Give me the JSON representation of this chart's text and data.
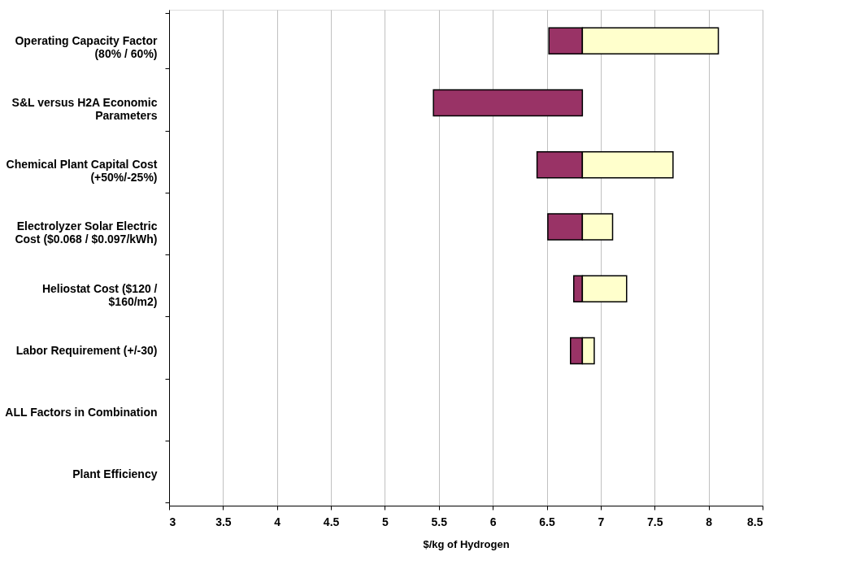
{
  "chart_data": {
    "type": "bar",
    "orientation": "horizontal",
    "xlabel": "$/kg of Hydrogen",
    "categories": [
      "Operating Capacity Factor\n(80% / 60%)",
      "S&L versus H2A Economic\nParameters",
      "Chemical Plant Capital Cost\n(+50%/-25%)",
      "Electrolyzer Solar Electric\nCost ($0.068 / $0.097/kWh)",
      "Heliostat Cost ($120 /\n$160/m2)",
      "Labor Requirement (+/-30)",
      "ALL Factors in Combination",
      "Plant Efficiency"
    ],
    "series": [
      {
        "color": "#993366",
        "base": [
          6.52,
          5.45,
          6.41,
          6.51,
          6.75,
          6.72,
          null,
          null
        ],
        "values": [
          0.31,
          1.38,
          0.42,
          0.32,
          0.08,
          0.11,
          null,
          null
        ]
      },
      {
        "color": "#ffffcc",
        "base": [
          6.83,
          null,
          6.83,
          6.83,
          6.83,
          6.83,
          null,
          null
        ],
        "values": [
          1.26,
          null,
          0.84,
          0.28,
          0.41,
          0.11,
          null,
          null
        ]
      }
    ],
    "xlim": [
      3,
      8.5
    ],
    "xticks": [
      3,
      3.5,
      4,
      4.5,
      5,
      5.5,
      6,
      6.5,
      7,
      7.5,
      8,
      8.5
    ],
    "grid": "x",
    "legend": false
  }
}
